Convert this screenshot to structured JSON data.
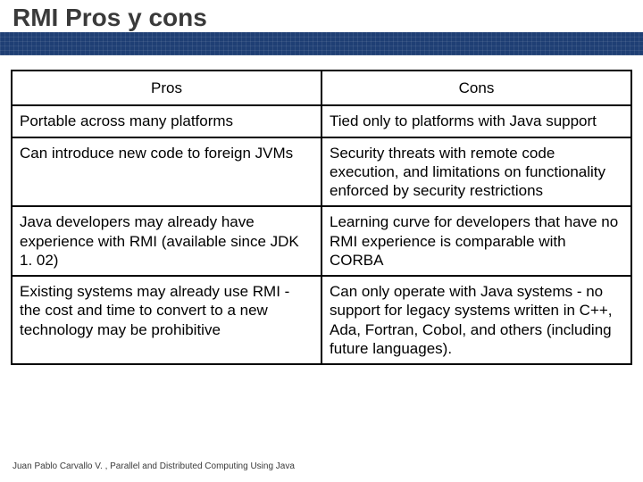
{
  "slide": {
    "title": "RMI Pros y cons",
    "footer": "Juan Pablo Carvallo V. , Parallel and Distributed Computing Using Java"
  },
  "table": {
    "columns": [
      "Pros",
      "Cons"
    ],
    "column_widths": [
      "50%",
      "50%"
    ],
    "header_fontsize": 17,
    "cell_fontsize": 17,
    "border_color": "#000000",
    "border_width": 2,
    "text_color": "#000000",
    "rows": [
      [
        "Portable across many platforms",
        "Tied only to platforms with Java support"
      ],
      [
        "Can introduce new code to foreign JVMs",
        "Security threats with remote code execution, and limitations on functionality enforced by security restrictions"
      ],
      [
        "Java developers may already have experience with RMI (available since JDK 1. 02)",
        "Learning curve for developers that have no RMI experience is comparable with CORBA"
      ],
      [
        "Existing systems may already use RMI - the cost and time to convert to a new technology may be prohibitive",
        "Can only operate with Java systems - no support for legacy systems written in C++, Ada, Fortran, Cobol, and others (including future languages)."
      ]
    ]
  },
  "styling": {
    "slide_width": 720,
    "slide_height": 540,
    "background_color": "#ffffff",
    "title_bar_bg_top": "#ffffff",
    "title_bar_bg_bottom": "#1f3f74",
    "title_color": "#3a3a3a",
    "title_fontsize": 28,
    "title_fontweight": "bold",
    "footer_fontsize": 10,
    "footer_color": "#3a3a3a",
    "font_family": "Arial"
  }
}
